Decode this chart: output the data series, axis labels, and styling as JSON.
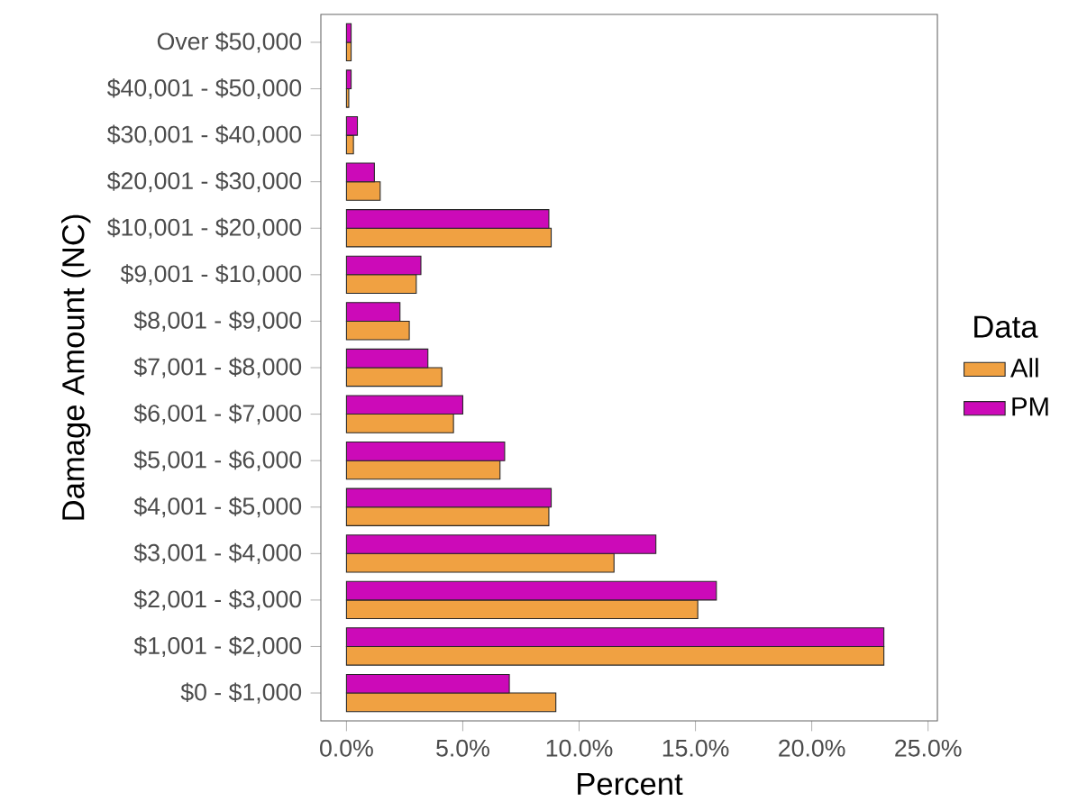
{
  "chart_data": {
    "type": "bar",
    "orientation": "horizontal",
    "xlabel": "Percent",
    "ylabel": "Damage Amount (NC)",
    "legend_title": "Data",
    "legend": "right",
    "grid": false,
    "categories": [
      "Over $50,000",
      "$40,001 - $50,000",
      "$30,001 - $40,000",
      "$20,001 - $30,000",
      "$10,001 - $20,000",
      "$9,001 - $10,000",
      "$8,001 - $9,000",
      "$7,001 - $8,000",
      "$6,001 - $7,000",
      "$5,001 - $6,000",
      "$4,001 - $5,000",
      "$3,001 - $4,000",
      "$2,001 - $3,000",
      "$1,001 - $2,000",
      "$0 - $1,000"
    ],
    "series": [
      {
        "name": "All",
        "color": "#f0a142",
        "values": [
          0.2,
          0.1,
          0.3,
          1.45,
          8.8,
          3.0,
          2.7,
          4.1,
          4.6,
          6.6,
          8.7,
          11.5,
          15.1,
          23.1,
          9.0
        ]
      },
      {
        "name": "PM",
        "color": "#cc0ab8",
        "values": [
          0.2,
          0.2,
          0.47,
          1.2,
          8.7,
          3.2,
          2.3,
          3.5,
          5.0,
          6.8,
          8.8,
          13.3,
          15.9,
          23.1,
          7.0
        ]
      }
    ],
    "xlim": [
      -1.1,
      25.4
    ],
    "xticks": [
      {
        "value": 0,
        "label": "0.0%"
      },
      {
        "value": 5,
        "label": "5.0%"
      },
      {
        "value": 10,
        "label": "10.0%"
      },
      {
        "value": 15,
        "label": "15.0%"
      },
      {
        "value": 20,
        "label": "20.0%"
      },
      {
        "value": 25,
        "label": "25.0%"
      }
    ]
  }
}
